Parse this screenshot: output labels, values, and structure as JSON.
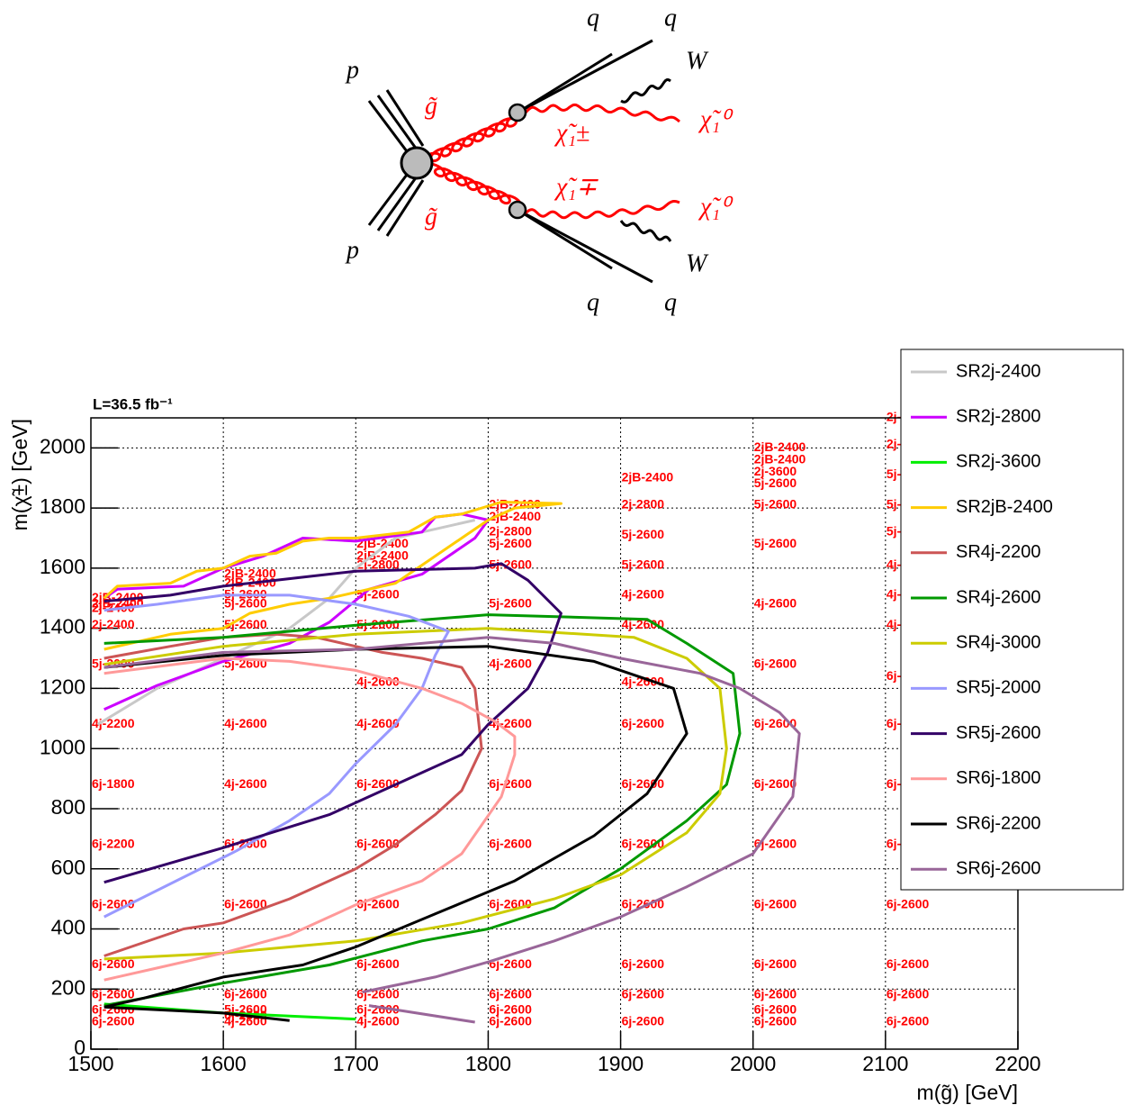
{
  "diagram": {
    "labels": [
      "p",
      "p",
      "g̃",
      "g̃",
      "q",
      "q",
      "q",
      "q",
      "W",
      "W",
      "χ̃₁±",
      "χ̃₁∓",
      "χ̃₁⁰",
      "χ̃₁⁰"
    ]
  },
  "chart_data": {
    "type": "line",
    "lumi": "L=36.5 fb⁻¹",
    "x_label": "m(g̃) [GeV]",
    "y_label": "m(χ̃±) [GeV]",
    "xlim": [
      1500,
      2200
    ],
    "ylim": [
      0,
      2100
    ],
    "xticks": [
      1500,
      1600,
      1700,
      1800,
      1900,
      2000,
      2100,
      2200
    ],
    "yticks": [
      0,
      200,
      400,
      600,
      800,
      1000,
      1200,
      1400,
      1600,
      1800,
      2000
    ],
    "grid": true,
    "series": [
      {
        "name": "SR2j-2400",
        "color": "#c8c8c8",
        "x": [
          1505,
          1550,
          1600,
          1650,
          1680,
          1700,
          1730,
          1750,
          1790
        ],
        "values": [
          1080,
          1200,
          1300,
          1400,
          1500,
          1600,
          1700,
          1720,
          1760
        ]
      },
      {
        "name": "SR2j-2800",
        "color": "#cc00ff",
        "x": [
          1510,
          1550,
          1600,
          1650,
          1680,
          1710,
          1750,
          1790,
          1800,
          1780,
          1760,
          1750,
          1700,
          1660,
          1630,
          1600,
          1570,
          1520,
          1510
        ],
        "values": [
          1130,
          1210,
          1290,
          1350,
          1420,
          1530,
          1580,
          1700,
          1760,
          1780,
          1770,
          1720,
          1690,
          1700,
          1640,
          1600,
          1540,
          1530,
          1500
        ]
      },
      {
        "name": "SR2j-3600",
        "color": "#00ee00",
        "x": [
          1510,
          1600,
          1700
        ],
        "values": [
          150,
          120,
          100
        ]
      },
      {
        "name": "SR2jB-2400",
        "color": "#ffcc00",
        "x": [
          1510,
          1560,
          1600,
          1620,
          1650,
          1680,
          1730,
          1780,
          1800,
          1820,
          1855,
          1810,
          1780,
          1760,
          1740,
          1700,
          1680,
          1660,
          1640,
          1620,
          1600,
          1580,
          1560,
          1520,
          1510
        ],
        "values": [
          1330,
          1380,
          1400,
          1450,
          1480,
          1500,
          1550,
          1700,
          1760,
          1800,
          1815,
          1820,
          1780,
          1770,
          1720,
          1700,
          1700,
          1690,
          1650,
          1640,
          1600,
          1590,
          1550,
          1540,
          1500
        ]
      },
      {
        "name": "SR4j-2200",
        "color": "#cc5555",
        "x": [
          1510,
          1530,
          1570,
          1600,
          1650,
          1700,
          1730,
          1760,
          1780,
          1795,
          1790,
          1780,
          1750,
          1720,
          1670,
          1640,
          1600,
          1560,
          1510
        ],
        "values": [
          310,
          340,
          400,
          420,
          500,
          600,
          680,
          780,
          860,
          1000,
          1200,
          1270,
          1300,
          1320,
          1370,
          1380,
          1370,
          1340,
          1300
        ]
      },
      {
        "name": "SR4j-2600",
        "color": "#009900",
        "x": [
          1510,
          1600,
          1680,
          1750,
          1800,
          1850,
          1900,
          1950,
          1980,
          1990,
          1985,
          1950,
          1920,
          1800,
          1700,
          1600,
          1510
        ],
        "values": [
          145,
          220,
          280,
          360,
          400,
          470,
          600,
          760,
          880,
          1050,
          1250,
          1350,
          1430,
          1445,
          1410,
          1370,
          1350
        ]
      },
      {
        "name": "SR4j-3000",
        "color": "#cccc00",
        "x": [
          1510,
          1600,
          1700,
          1780,
          1850,
          1900,
          1950,
          1975,
          1980,
          1975,
          1950,
          1910,
          1800,
          1700,
          1600,
          1510
        ],
        "values": [
          300,
          320,
          360,
          420,
          500,
          580,
          720,
          850,
          1000,
          1200,
          1300,
          1370,
          1400,
          1380,
          1340,
          1280
        ]
      },
      {
        "name": "SR5j-2000",
        "color": "#9999ff",
        "x": [
          1510,
          1560,
          1610,
          1650,
          1680,
          1700,
          1730,
          1750,
          1760,
          1770,
          1740,
          1700,
          1650,
          1600,
          1550,
          1510
        ],
        "values": [
          440,
          550,
          660,
          760,
          850,
          950,
          1080,
          1200,
          1310,
          1390,
          1440,
          1480,
          1510,
          1510,
          1480,
          1460
        ]
      },
      {
        "name": "SR5j-2600",
        "color": "#330066",
        "x": [
          1510,
          1600,
          1680,
          1740,
          1780,
          1800,
          1830,
          1845,
          1855,
          1830,
          1810,
          1790,
          1700,
          1640,
          1600,
          1560,
          1510
        ],
        "values": [
          555,
          670,
          780,
          900,
          980,
          1080,
          1200,
          1320,
          1450,
          1560,
          1615,
          1600,
          1590,
          1560,
          1540,
          1510,
          1490
        ]
      },
      {
        "name": "SR6j-1800",
        "color": "#ff9999",
        "x": [
          1510,
          1550,
          1600,
          1650,
          1700,
          1750,
          1780,
          1810,
          1820,
          1820,
          1805,
          1780,
          1750,
          1700,
          1650,
          1600,
          1510
        ],
        "values": [
          230,
          270,
          320,
          380,
          480,
          560,
          650,
          840,
          980,
          1040,
          1090,
          1150,
          1200,
          1260,
          1290,
          1300,
          1250
        ]
      },
      {
        "name": "SR6j-2200",
        "color": "#000000",
        "x": [
          1510,
          1540,
          1600,
          1660,
          1700,
          1760,
          1820,
          1880,
          1920,
          1950,
          1940,
          1920,
          1880,
          1800,
          1700,
          1600,
          1510,
          null,
          1510,
          1600,
          1650
        ],
        "values": [
          140,
          170,
          240,
          280,
          340,
          450,
          560,
          710,
          850,
          1050,
          1200,
          1230,
          1290,
          1340,
          1330,
          1310,
          1270,
          null,
          140,
          120,
          95
        ]
      },
      {
        "name": "SR6j-2600",
        "color": "#996699",
        "x": [
          1705,
          1760,
          1800,
          1850,
          1900,
          1950,
          2000,
          2030,
          2035,
          2020,
          1990,
          1960,
          1900,
          1850,
          1800,
          1700,
          1600,
          1510,
          null,
          1710,
          1790
        ],
        "values": [
          190,
          240,
          290,
          360,
          440,
          540,
          650,
          840,
          1050,
          1120,
          1200,
          1250,
          1300,
          1350,
          1370,
          1330,
          1320,
          1270,
          null,
          145,
          90
        ]
      }
    ],
    "point_labels": [
      {
        "x": 1500,
        "labels": [
          {
            "y": 1500,
            "text": "2jB-2400"
          },
          {
            "y": 1480,
            "text": "2jB-2400"
          },
          {
            "y": 1465,
            "text": "2j-2400"
          },
          {
            "y": 1410,
            "text": "2j-2400"
          },
          {
            "y": 1280,
            "text": "5j-2000"
          },
          {
            "y": 1080,
            "text": "4j-2200"
          },
          {
            "y": 880,
            "text": "6j-1800"
          },
          {
            "y": 680,
            "text": "6j-2200"
          },
          {
            "y": 480,
            "text": "6j-2600"
          },
          {
            "y": 280,
            "text": "6j-2600"
          },
          {
            "y": 180,
            "text": "6j-2600"
          },
          {
            "y": 130,
            "text": "6j-2600"
          },
          {
            "y": 90,
            "text": "6j-2600"
          }
        ]
      },
      {
        "x": 1600,
        "labels": [
          {
            "y": 1580,
            "text": "2jB-2400"
          },
          {
            "y": 1550,
            "text": "2jB-2400"
          },
          {
            "y": 1510,
            "text": "5j-2600"
          },
          {
            "y": 1480,
            "text": "5j-2600"
          },
          {
            "y": 1410,
            "text": "5j-2600"
          },
          {
            "y": 1280,
            "text": "5j-2600"
          },
          {
            "y": 1080,
            "text": "4j-2600"
          },
          {
            "y": 880,
            "text": "4j-2600"
          },
          {
            "y": 680,
            "text": "6j-2600"
          },
          {
            "y": 480,
            "text": "6j-2600"
          },
          {
            "y": 180,
            "text": "6j-2600"
          },
          {
            "y": 130,
            "text": "5j-2600"
          },
          {
            "y": 110,
            "text": "6j-2600"
          },
          {
            "y": 90,
            "text": "4j-2600"
          }
        ]
      },
      {
        "x": 1700,
        "labels": [
          {
            "y": 1680,
            "text": "2jB-2400"
          },
          {
            "y": 1640,
            "text": "2jB-2400"
          },
          {
            "y": 1610,
            "text": "2j-2800"
          },
          {
            "y": 1510,
            "text": "5j-2600"
          },
          {
            "y": 1410,
            "text": "5j-2600"
          },
          {
            "y": 1220,
            "text": "4j-2600"
          },
          {
            "y": 1080,
            "text": "4j-2600"
          },
          {
            "y": 880,
            "text": "6j-2600"
          },
          {
            "y": 680,
            "text": "6j-2600"
          },
          {
            "y": 480,
            "text": "6j-2600"
          },
          {
            "y": 280,
            "text": "6j-2600"
          },
          {
            "y": 180,
            "text": "6j-2600"
          },
          {
            "y": 130,
            "text": "6j-2600"
          },
          {
            "y": 90,
            "text": "4j-2600"
          }
        ]
      },
      {
        "x": 1800,
        "labels": [
          {
            "y": 1810,
            "text": "2jB-2400"
          },
          {
            "y": 1770,
            "text": "2jB-2400"
          },
          {
            "y": 1720,
            "text": "2j-2800"
          },
          {
            "y": 1680,
            "text": "5j-2600"
          },
          {
            "y": 1610,
            "text": "5j-2600"
          },
          {
            "y": 1480,
            "text": "5j-2600"
          },
          {
            "y": 1280,
            "text": "4j-2600"
          },
          {
            "y": 1080,
            "text": "4j-2600"
          },
          {
            "y": 880,
            "text": "6j-2600"
          },
          {
            "y": 680,
            "text": "6j-2600"
          },
          {
            "y": 480,
            "text": "6j-2600"
          },
          {
            "y": 280,
            "text": "6j-2600"
          },
          {
            "y": 180,
            "text": "6j-2600"
          },
          {
            "y": 130,
            "text": "6j-2600"
          },
          {
            "y": 90,
            "text": "6j-2600"
          }
        ]
      },
      {
        "x": 1900,
        "labels": [
          {
            "y": 1900,
            "text": "2jB-2400"
          },
          {
            "y": 1810,
            "text": "2j-2800"
          },
          {
            "y": 1710,
            "text": "5j-2600"
          },
          {
            "y": 1610,
            "text": "5j-2600"
          },
          {
            "y": 1510,
            "text": "4j-2600"
          },
          {
            "y": 1410,
            "text": "4j-2600"
          },
          {
            "y": 1220,
            "text": "4j-2600"
          },
          {
            "y": 1080,
            "text": "6j-2600"
          },
          {
            "y": 880,
            "text": "6j-2600"
          },
          {
            "y": 680,
            "text": "6j-2600"
          },
          {
            "y": 480,
            "text": "6j-2600"
          },
          {
            "y": 280,
            "text": "6j-2600"
          },
          {
            "y": 180,
            "text": "6j-2600"
          },
          {
            "y": 90,
            "text": "6j-2600"
          }
        ]
      },
      {
        "x": 2000,
        "labels": [
          {
            "y": 2000,
            "text": "2jB-2400"
          },
          {
            "y": 1960,
            "text": "2jB-2400"
          },
          {
            "y": 1920,
            "text": "2j-3600"
          },
          {
            "y": 1880,
            "text": "5j-2600"
          },
          {
            "y": 1810,
            "text": "5j-2600"
          },
          {
            "y": 1680,
            "text": "5j-2600"
          },
          {
            "y": 1480,
            "text": "4j-2600"
          },
          {
            "y": 1280,
            "text": "6j-2600"
          },
          {
            "y": 1080,
            "text": "6j-2600"
          },
          {
            "y": 880,
            "text": "6j-2600"
          },
          {
            "y": 680,
            "text": "6j-2600"
          },
          {
            "y": 480,
            "text": "6j-2600"
          },
          {
            "y": 280,
            "text": "6j-2600"
          },
          {
            "y": 180,
            "text": "6j-2600"
          },
          {
            "y": 130,
            "text": "6j-2600"
          },
          {
            "y": 90,
            "text": "6j-2600"
          }
        ]
      },
      {
        "x": 2100,
        "labels": [
          {
            "y": 2100,
            "text": "2j-"
          },
          {
            "y": 2010,
            "text": "2j-"
          },
          {
            "y": 1910,
            "text": "5j-"
          },
          {
            "y": 1810,
            "text": "5j-"
          },
          {
            "y": 1720,
            "text": "5j-"
          },
          {
            "y": 1610,
            "text": "4j-"
          },
          {
            "y": 1510,
            "text": "4j-"
          },
          {
            "y": 1410,
            "text": "4j-"
          },
          {
            "y": 1240,
            "text": "6j-"
          },
          {
            "y": 1080,
            "text": "6j-"
          },
          {
            "y": 880,
            "text": "6j-"
          },
          {
            "y": 680,
            "text": "6j-"
          },
          {
            "y": 480,
            "text": "6j-2600"
          },
          {
            "y": 280,
            "text": "6j-2600"
          },
          {
            "y": 180,
            "text": "6j-2600"
          },
          {
            "y": 90,
            "text": "6j-2600"
          }
        ]
      }
    ]
  }
}
